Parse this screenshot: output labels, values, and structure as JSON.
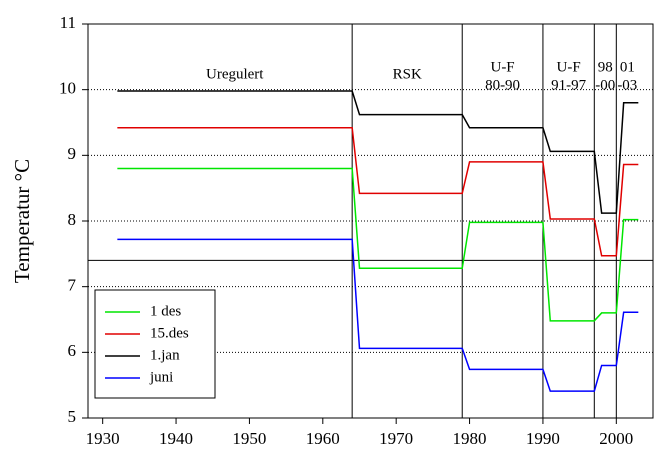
{
  "chart_data": {
    "type": "line",
    "ylabel": "Temperatur °C",
    "xlim": [
      1928,
      2005
    ],
    "xticks": [
      1930,
      1940,
      1950,
      1960,
      1970,
      1980,
      1990,
      2000
    ],
    "ylim": [
      5,
      11
    ],
    "yticks": [
      5,
      6,
      7,
      8,
      9,
      10,
      11
    ],
    "grid": true,
    "legend": "lower left",
    "reference_line": 7.4,
    "boundaries": [
      1964,
      1979,
      1990,
      1997,
      2000
    ],
    "period_labels": [
      [
        "Uregulert"
      ],
      [
        "RSK"
      ],
      [
        "U-F",
        "80-90"
      ],
      [
        "U-F",
        "91-97"
      ],
      [
        "98",
        "-00"
      ],
      [
        "01",
        "-03"
      ]
    ],
    "x": [
      1932,
      1964,
      1965,
      1979,
      1980,
      1990,
      1991,
      1997,
      1998,
      2000,
      2001,
      2003
    ],
    "series": [
      {
        "name": "1 des",
        "color": "#00e600",
        "values": [
          8.8,
          8.8,
          7.28,
          7.28,
          7.98,
          7.98,
          6.48,
          6.48,
          6.6,
          6.6,
          8.02,
          8.02
        ]
      },
      {
        "name": "15.des",
        "color": "#e00000",
        "values": [
          9.42,
          9.42,
          8.42,
          8.42,
          8.9,
          8.9,
          8.03,
          8.03,
          7.47,
          7.47,
          8.86,
          8.86
        ]
      },
      {
        "name": "1.jan",
        "color": "#000000",
        "values": [
          9.98,
          9.98,
          9.62,
          9.62,
          9.42,
          9.42,
          9.06,
          9.06,
          8.12,
          8.12,
          9.8,
          9.8
        ]
      },
      {
        "name": "juni",
        "color": "#0000ff",
        "values": [
          7.72,
          7.72,
          6.06,
          6.06,
          5.74,
          5.74,
          5.41,
          5.41,
          5.8,
          5.8,
          6.61,
          6.61
        ]
      }
    ]
  }
}
